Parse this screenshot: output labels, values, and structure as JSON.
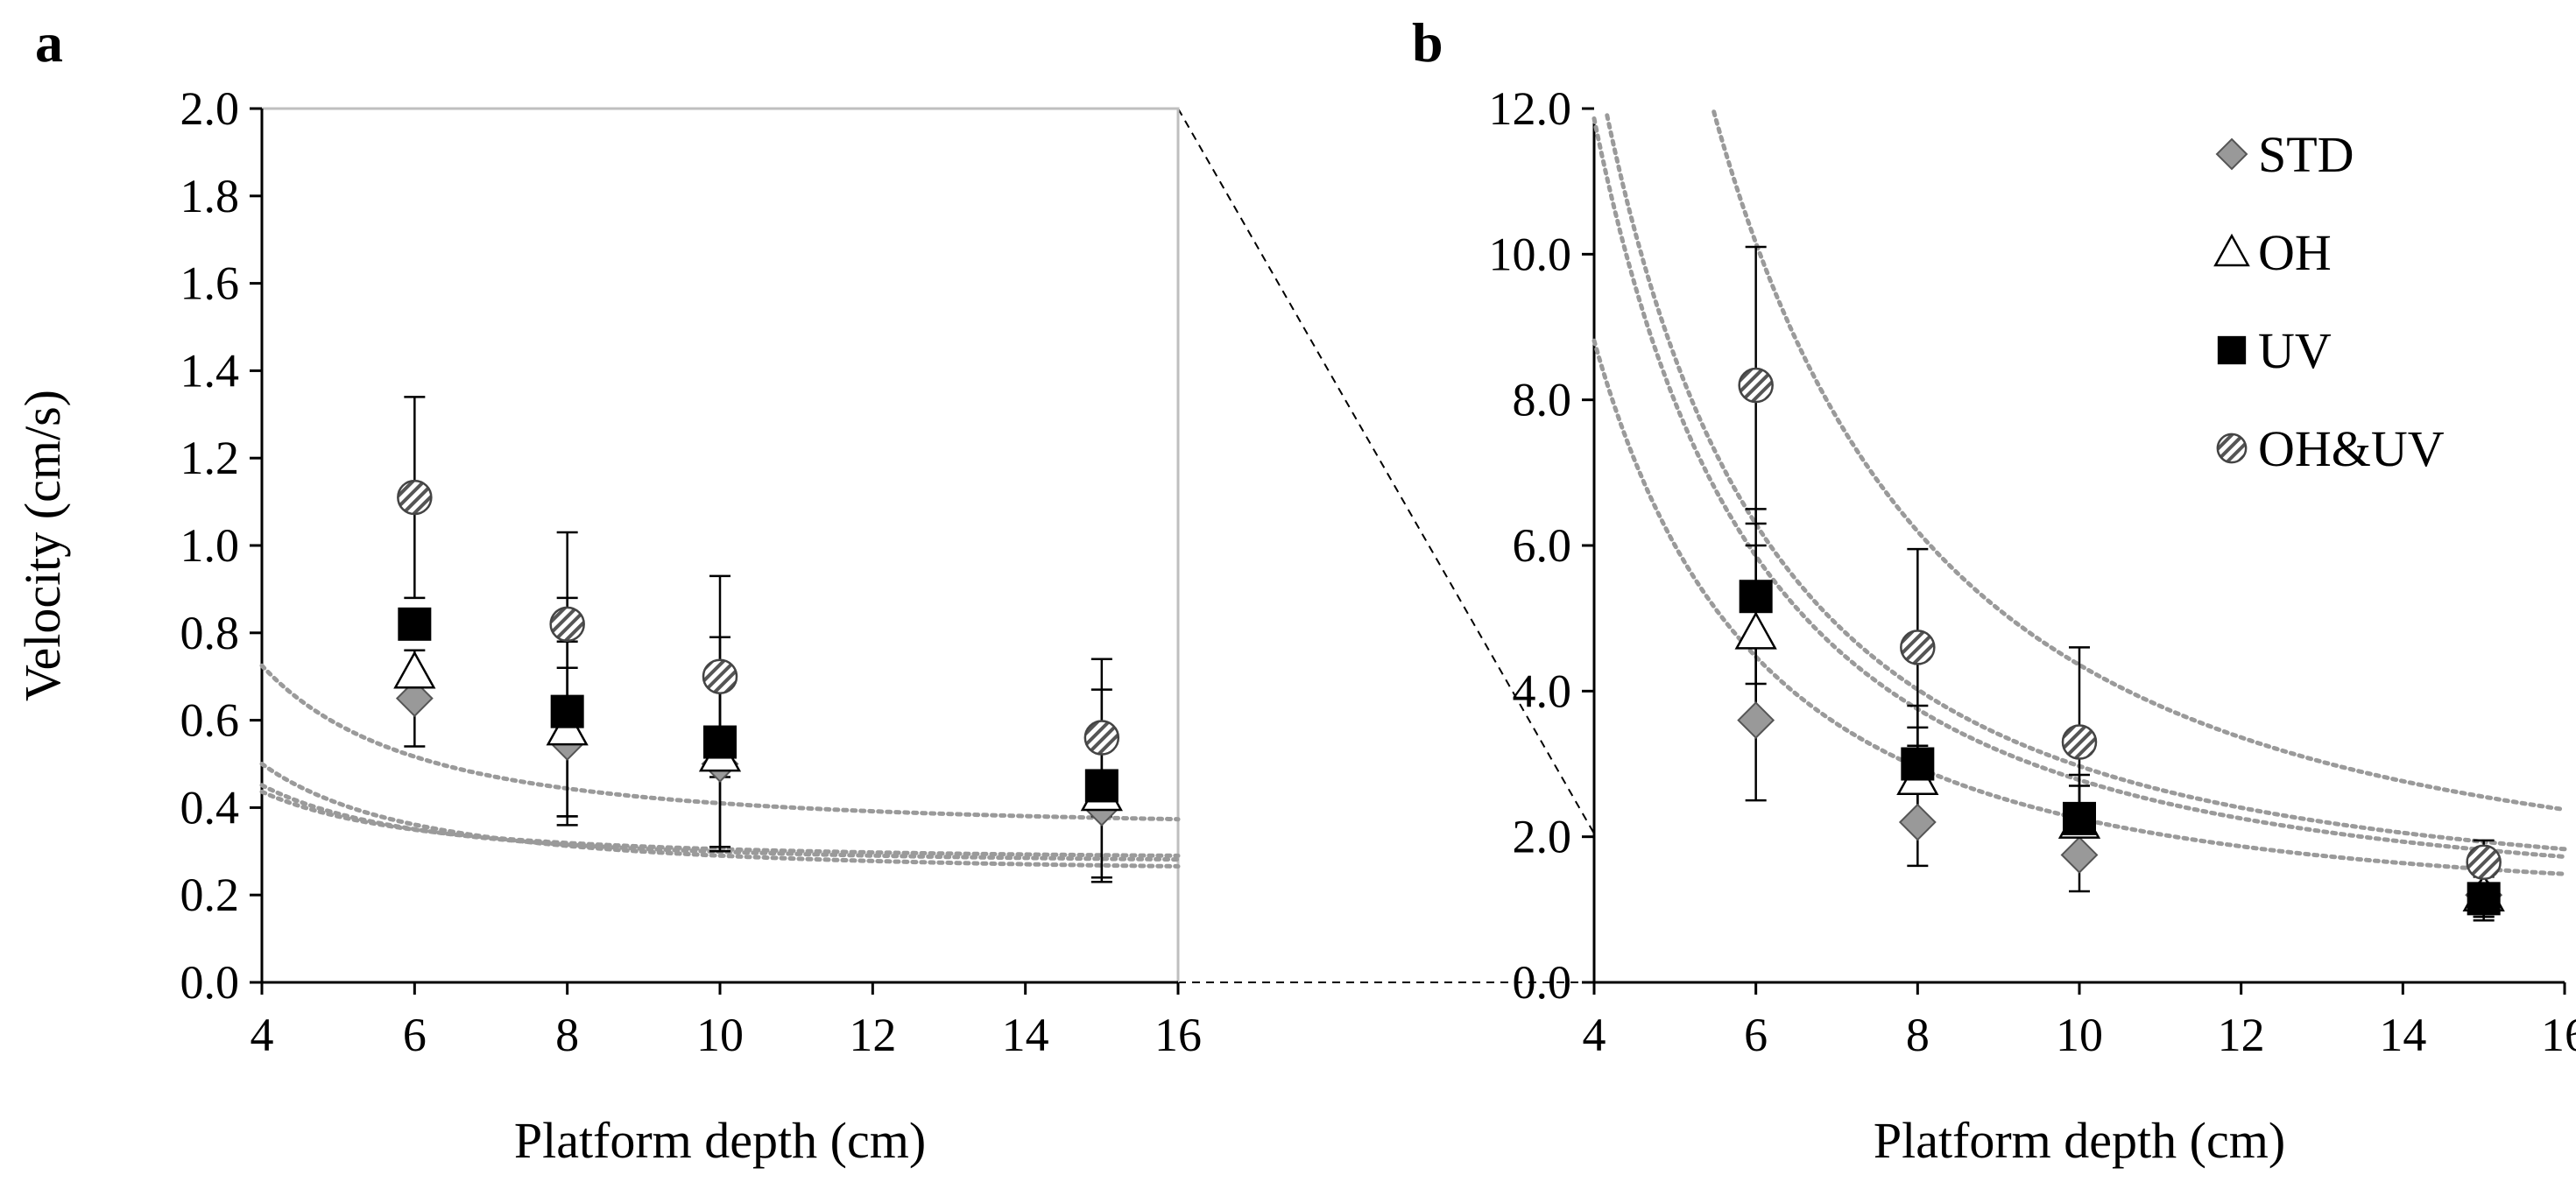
{
  "chart_data": [
    {
      "type": "scatter",
      "panel_label": "a",
      "xlabel": "Platform depth (cm)",
      "ylabel": "Velocity (cm/s)",
      "xlim": [
        4,
        16
      ],
      "ylim": [
        0,
        2
      ],
      "x_ticks": [
        "4",
        "6",
        "8",
        "10",
        "12",
        "14",
        "16"
      ],
      "y_ticks": [
        "0.0",
        "0.2",
        "0.4",
        "0.6",
        "0.8",
        "1.0",
        "1.2",
        "1.4",
        "1.6",
        "1.8",
        "2.0"
      ],
      "grid": false,
      "boxed": true,
      "x": [
        6,
        8,
        10,
        15
      ],
      "series": [
        {
          "name": "STD",
          "marker": "diamond",
          "values": [
            0.65,
            0.55,
            0.5,
            0.4
          ],
          "error": [
            0.11,
            0.17,
            0.2,
            0.16
          ],
          "fit": {
            "a": 2.5,
            "b": 0.28
          }
        },
        {
          "name": "OH",
          "marker": "triangle",
          "values": [
            0.71,
            0.58,
            0.52,
            0.43
          ],
          "error": [
            0.0,
            0.2,
            0.0,
            0.0
          ],
          "fit": {
            "a": 2.9,
            "b": 0.27
          }
        },
        {
          "name": "UV",
          "marker": "square",
          "values": [
            0.82,
            0.62,
            0.55,
            0.45
          ],
          "error": [
            0.0,
            0.26,
            0.24,
            0.22
          ],
          "fit": {
            "a": 4.0,
            "b": 0.25
          }
        },
        {
          "name": "OH&UV",
          "marker": "hatched-circle",
          "values": [
            1.11,
            0.82,
            0.7,
            0.56
          ],
          "error": [
            0.23,
            0.21,
            0.23,
            0.18
          ],
          "fit": {
            "a": 6.0,
            "b": 0.35
          }
        }
      ]
    },
    {
      "type": "scatter",
      "panel_label": "b",
      "xlabel": "Platform depth (cm)",
      "ylabel": "",
      "xlim": [
        4,
        16
      ],
      "ylim": [
        0,
        12
      ],
      "x_ticks": [
        "4",
        "6",
        "8",
        "10",
        "12",
        "14",
        "16"
      ],
      "y_ticks": [
        "0.0",
        "2.0",
        "4.0",
        "6.0",
        "8.0",
        "10.0",
        "12.0"
      ],
      "grid": false,
      "boxed": false,
      "legend_position": "top-right",
      "x": [
        6,
        8,
        10,
        15
      ],
      "series": [
        {
          "name": "STD",
          "marker": "diamond",
          "values": [
            3.6,
            2.2,
            1.75,
            1.2
          ],
          "error": [
            1.1,
            0.6,
            0.5,
            0.3
          ],
          "fit": {
            "a": 125,
            "b": 1.0
          }
        },
        {
          "name": "OH",
          "marker": "triangle",
          "values": [
            4.8,
            2.8,
            2.2,
            1.2
          ],
          "error": [
            1.2,
            0.7,
            0.5,
            0.3
          ],
          "fit": {
            "a": 173,
            "b": 1.05
          }
        },
        {
          "name": "UV",
          "marker": "square",
          "values": [
            5.3,
            3.0,
            2.25,
            1.15
          ],
          "error": [
            1.2,
            0.8,
            0.6,
            0.3
          ],
          "fit": {
            "a": 187,
            "b": 1.1
          }
        },
        {
          "name": "OH&UV",
          "marker": "hatched-circle",
          "values": [
            8.2,
            4.6,
            3.3,
            1.65
          ],
          "error": [
            1.9,
            1.35,
            1.3,
            0.3
          ],
          "fit": {
            "a": 326,
            "b": 1.1
          }
        }
      ]
    }
  ]
}
